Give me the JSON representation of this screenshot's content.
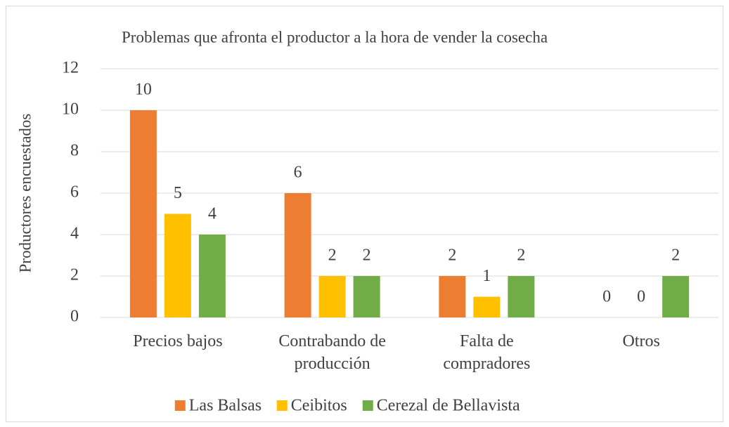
{
  "chart_data": {
    "type": "bar",
    "title": "Problemas que afronta el productor a la hora de vender la cosecha",
    "ylabel": "Productores encuestados",
    "categories": [
      "Precios bajos",
      "Contrabando de producción",
      "Falta de compradores",
      "Otros"
    ],
    "series": [
      {
        "name": "Las Balsas",
        "color": "#ED7D31",
        "values": [
          10,
          6,
          2,
          0
        ]
      },
      {
        "name": "Ceibitos",
        "color": "#FFC000",
        "values": [
          5,
          2,
          1,
          0
        ]
      },
      {
        "name": "Cerezal de Bellavista",
        "color": "#70AD47",
        "values": [
          4,
          2,
          2,
          2
        ]
      }
    ],
    "ylim": [
      0,
      12
    ],
    "yticks": [
      0,
      2,
      4,
      6,
      8,
      10,
      12
    ],
    "grid": true,
    "legend": "bottom"
  }
}
